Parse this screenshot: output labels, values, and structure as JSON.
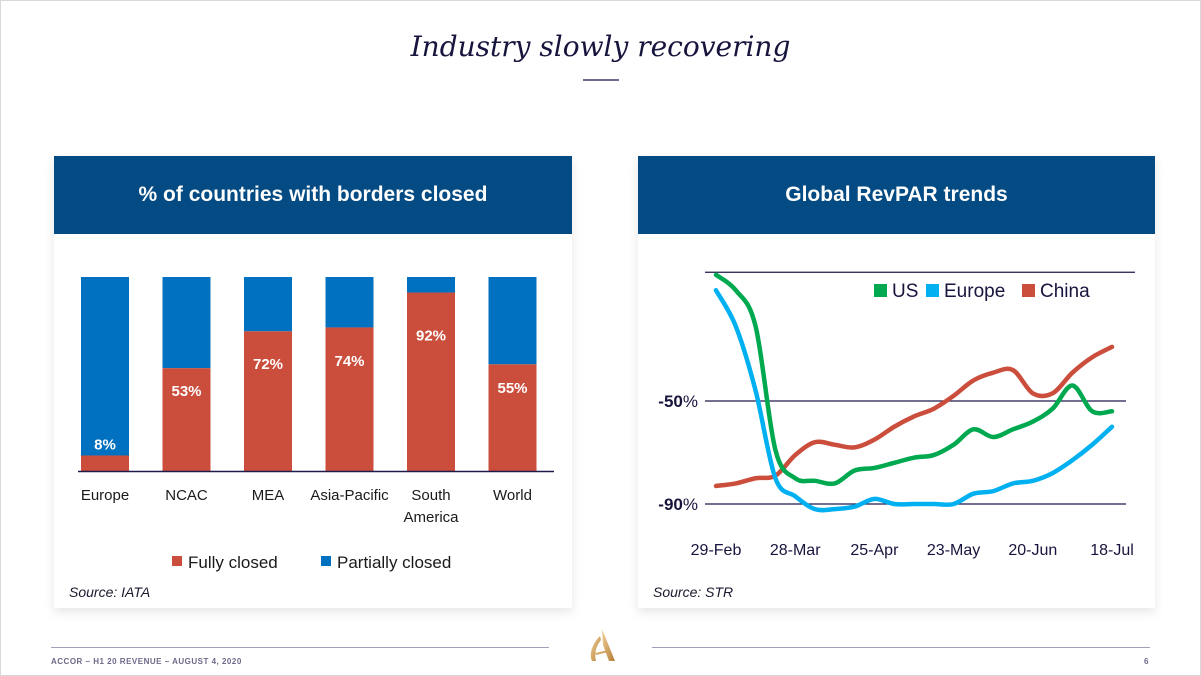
{
  "slide": {
    "title": "Industry slowly recovering",
    "footer": "ACCOR – H1 20 REVENUE – AUGUST 4, 2020",
    "page_number": "6",
    "colors": {
      "navy": "#044a83",
      "fully_closed": "#cb4e3d",
      "partially_closed": "#0070c0",
      "us": "#00a94f",
      "europe": "#00b0f0",
      "china": "#cb4e3d",
      "gold": "#c9974b"
    }
  },
  "left_panel": {
    "header": "% of countries with borders closed",
    "source": "Source: IATA"
  },
  "right_panel": {
    "header": "Global RevPAR trends",
    "source": "Source: STR"
  },
  "chart_data": [
    {
      "type": "bar",
      "stacked": true,
      "title": "% of countries with borders closed",
      "categories": [
        "Europe",
        "NCAC",
        "MEA",
        "Asia-Pacific",
        "South America",
        "World"
      ],
      "category_labels": [
        [
          "Europe"
        ],
        [
          "NCAC"
        ],
        [
          "MEA"
        ],
        [
          "Asia-Pacific"
        ],
        [
          "South",
          "America"
        ],
        [
          "World"
        ]
      ],
      "series": [
        {
          "name": "Fully closed",
          "values": [
            8,
            53,
            72,
            74,
            92,
            55
          ],
          "labels": [
            "8%",
            "53%",
            "72%",
            "74%",
            "92%",
            "55%"
          ]
        },
        {
          "name": "Partially closed",
          "values": [
            92,
            47,
            28,
            26,
            8,
            45
          ]
        }
      ],
      "ylim": [
        0,
        100
      ],
      "legend": "bottom",
      "source": "Source: IATA"
    },
    {
      "type": "line",
      "title": "Global RevPAR trends",
      "x_tick_labels": [
        "29-Feb",
        "28-Mar",
        "25-Apr",
        "23-May",
        "20-Jun",
        "18-Jul"
      ],
      "x_weeks_from_29_feb": [
        0,
        4,
        8,
        12,
        16,
        20
      ],
      "x": [
        0,
        1,
        2,
        3,
        4,
        5,
        6,
        7,
        8,
        9,
        10,
        11,
        12,
        13,
        14,
        15,
        16,
        17,
        18,
        19,
        20
      ],
      "y_tick_labels": [
        {
          "value": -50,
          "bold": "-50",
          "suffix": "%"
        },
        {
          "value": -90,
          "bold": "-90",
          "suffix": "%"
        }
      ],
      "gridlines": [
        0,
        -50,
        -90
      ],
      "ylim": [
        -100,
        0
      ],
      "series": [
        {
          "name": "US",
          "values": [
            -1,
            -7,
            -21,
            -69,
            -80,
            -81,
            -82,
            -77,
            -76,
            -74,
            -72,
            -71,
            -67,
            -61,
            -64,
            -61,
            -58,
            -53,
            -44,
            -54,
            -54
          ]
        },
        {
          "name": "Europe",
          "values": [
            -7,
            -21,
            -46,
            -80,
            -87,
            -92,
            -92,
            -91,
            -88,
            -90,
            -90,
            -90,
            -90,
            -86,
            -85,
            -82,
            -81,
            -78,
            -73,
            -67,
            -60
          ]
        },
        {
          "name": "China",
          "values": [
            -83,
            -82,
            -80,
            -79,
            -71,
            -66,
            -67,
            -68,
            -65,
            -60,
            -56,
            -53,
            -48,
            -42,
            -39,
            -38,
            -47,
            -47,
            -39,
            -33,
            -29
          ]
        }
      ],
      "legend": "top-right",
      "source": "Source: STR"
    }
  ]
}
